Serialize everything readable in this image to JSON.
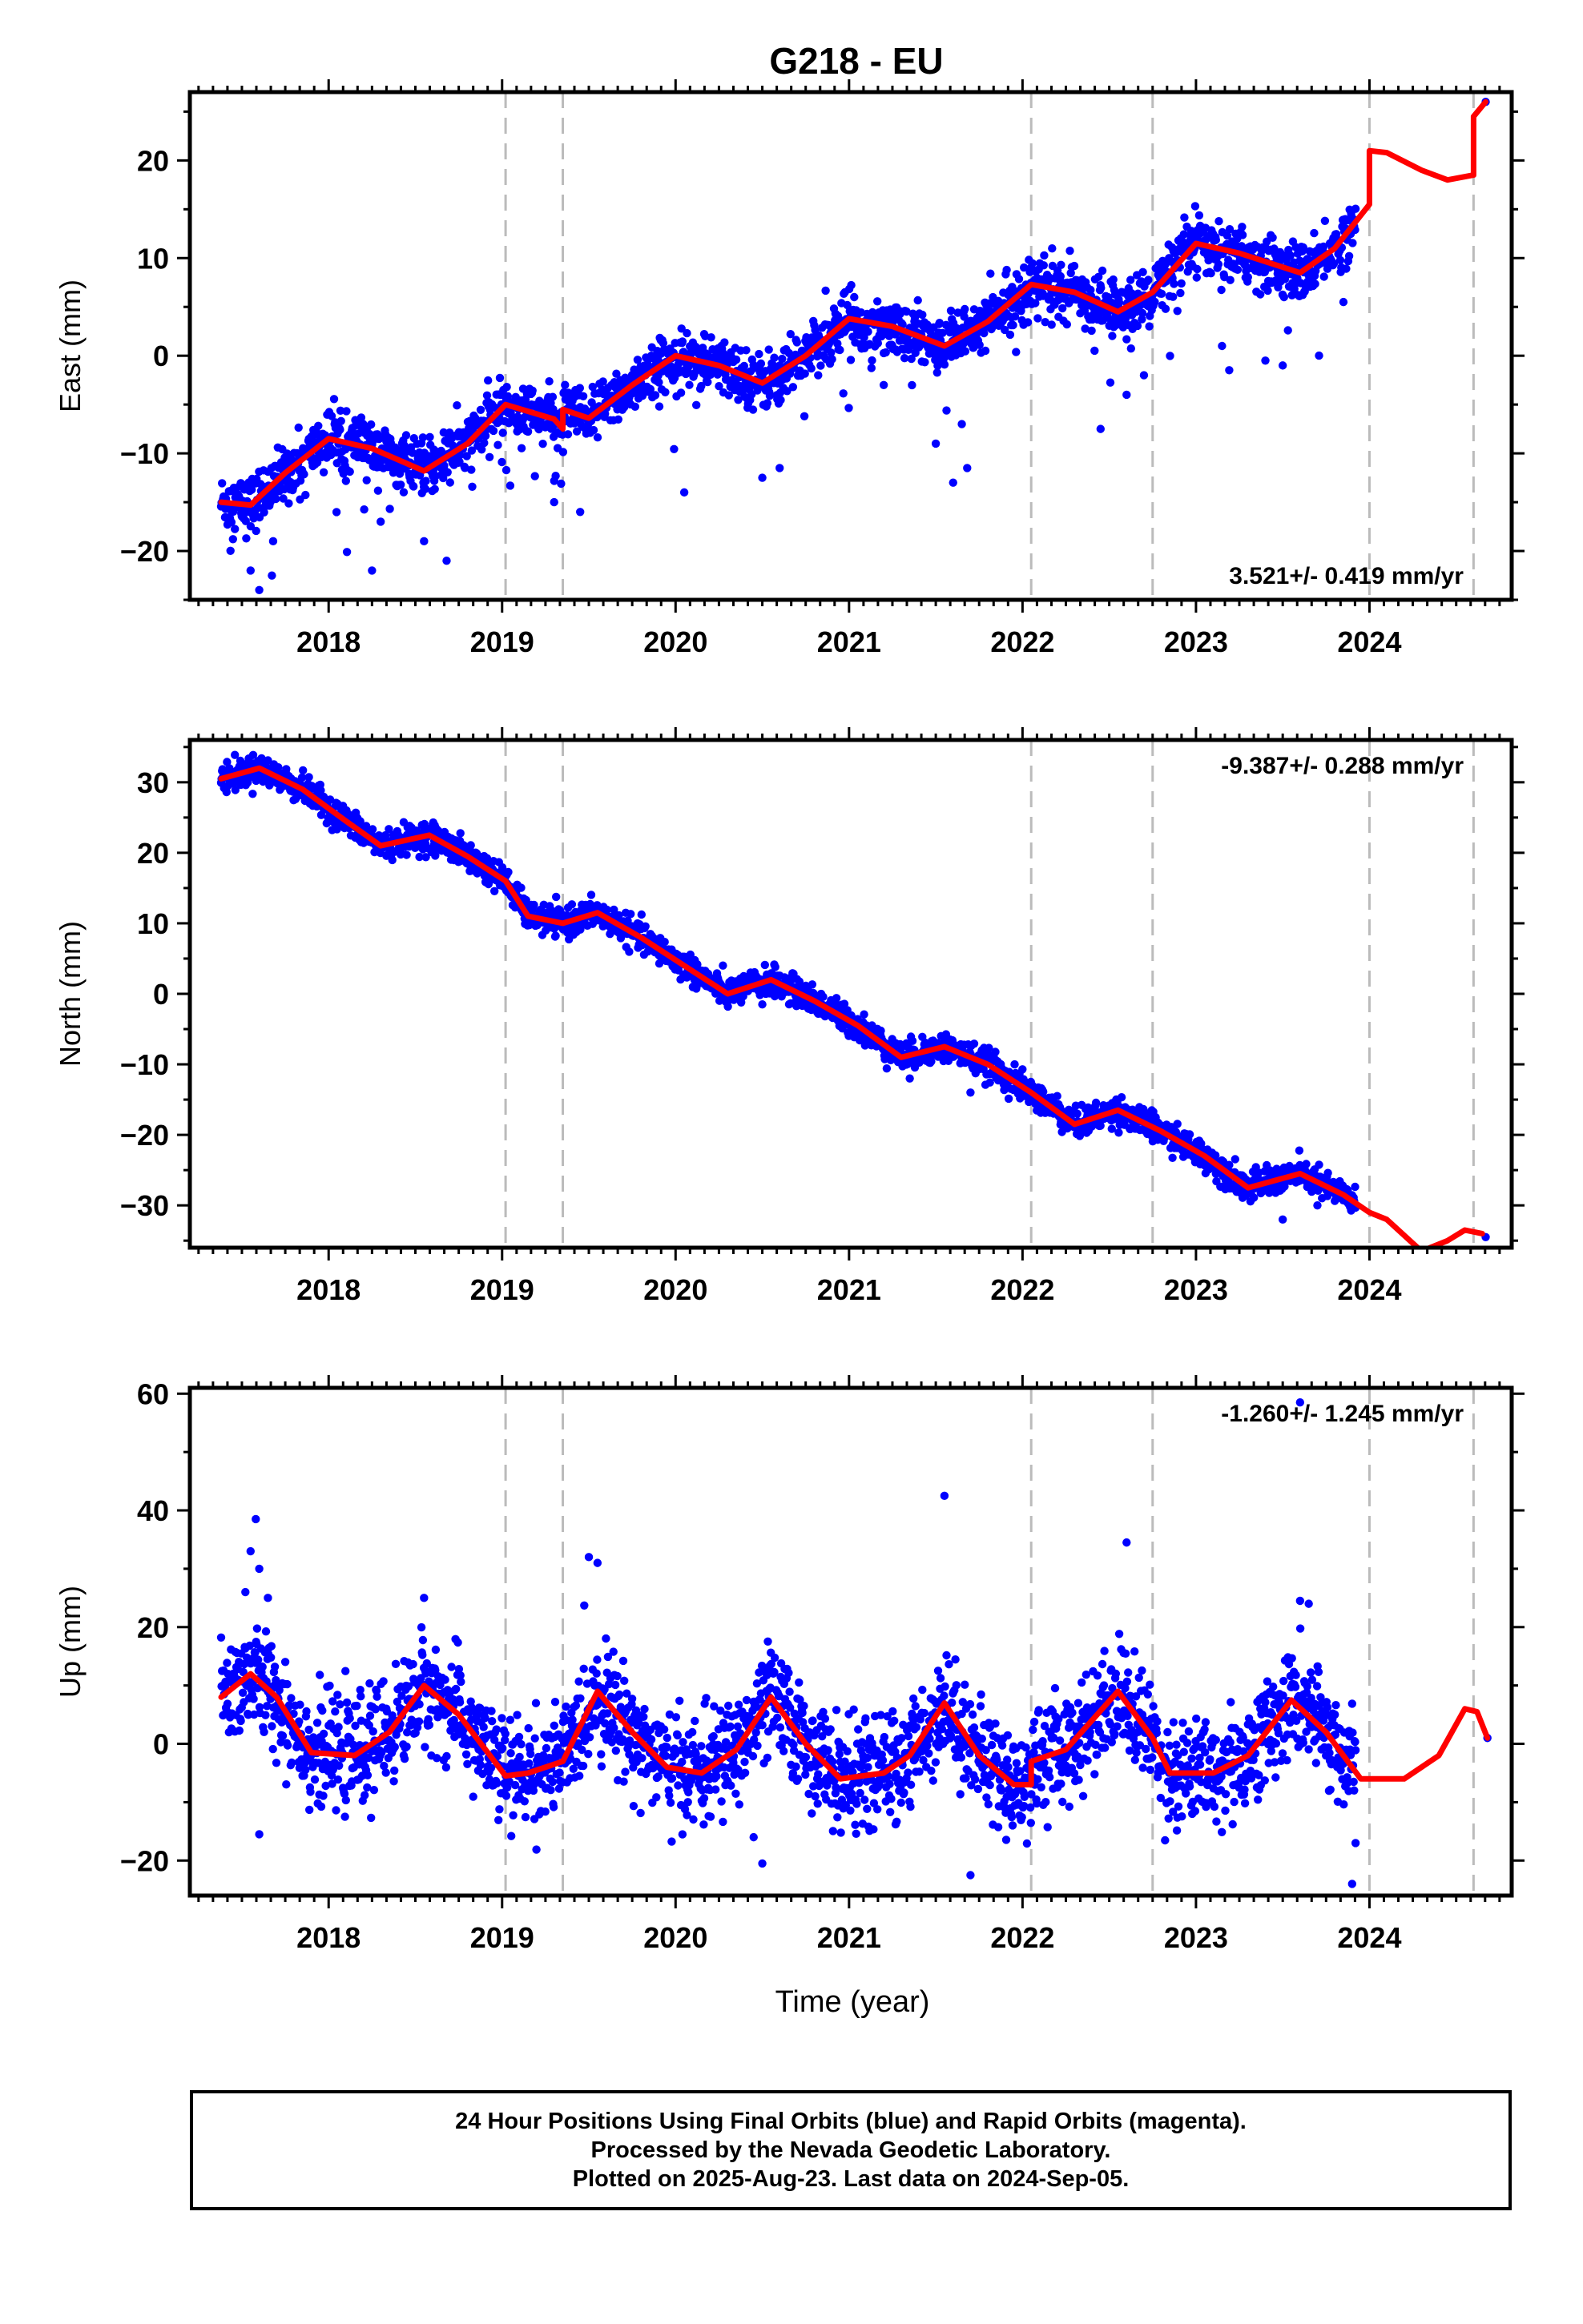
{
  "title": "G218 - EU",
  "xlabel": "Time (year)",
  "caption": [
    "24 Hour Positions Using Final Orbits (blue) and Rapid Orbits (magenta).",
    "Processed by the Nevada Geodetic Laboratory.",
    "Plotted on 2025-Aug-23. Last data on 2024-Sep-05."
  ],
  "colors": {
    "points": "#0000ff",
    "model": "#ff0000",
    "breaks": "#bbbbbb",
    "frame": "#000000"
  },
  "chart_data": [
    {
      "type": "scatter",
      "ylabel": "East (mm)",
      "rate_label": "3.521+/- 0.419 mm/yr",
      "rate_position": "bottom-right",
      "xlim": [
        2017.2,
        2024.82
      ],
      "ylim": [
        -25,
        27
      ],
      "xticks": [
        2018,
        2019,
        2020,
        2021,
        2022,
        2023,
        2024
      ],
      "yticks": [
        -20,
        -10,
        0,
        10,
        20
      ],
      "breaks": [
        2019.02,
        2019.35,
        2022.05,
        2022.75,
        2024.0,
        2024.6
      ],
      "trend": [
        [
          2017.38,
          -15
        ],
        [
          2017.55,
          -15.3
        ],
        [
          2017.75,
          -12
        ],
        [
          2018.0,
          -8.5
        ],
        [
          2018.25,
          -9.5
        ],
        [
          2018.55,
          -11.8
        ],
        [
          2018.8,
          -9
        ],
        [
          2019.02,
          -5
        ],
        [
          2019.3,
          -6.5
        ],
        [
          2019.35,
          -7.5
        ],
        [
          2019.35,
          -5.5
        ],
        [
          2019.5,
          -6.4
        ],
        [
          2019.75,
          -3
        ],
        [
          2020.0,
          0
        ],
        [
          2020.25,
          -1
        ],
        [
          2020.5,
          -2.8
        ],
        [
          2020.75,
          0
        ],
        [
          2021.0,
          3.8
        ],
        [
          2021.25,
          3
        ],
        [
          2021.55,
          1
        ],
        [
          2021.8,
          3.5
        ],
        [
          2022.05,
          7.3
        ],
        [
          2022.3,
          6.5
        ],
        [
          2022.55,
          4.5
        ],
        [
          2022.75,
          6.5
        ],
        [
          2023.0,
          11.5
        ],
        [
          2023.25,
          10.5
        ],
        [
          2023.6,
          8.5
        ],
        [
          2023.8,
          11
        ],
        [
          2024.0,
          15.5
        ],
        [
          2024.0,
          21
        ],
        [
          2024.1,
          20.8
        ],
        [
          2024.3,
          19
        ],
        [
          2024.45,
          18
        ],
        [
          2024.6,
          18.5
        ],
        [
          2024.6,
          24.5
        ],
        [
          2024.67,
          26
        ]
      ],
      "residual_sigma": 1.4,
      "scatter_range": [
        2017.38,
        2023.92
      ],
      "last_point": [
        2024.67,
        26
      ],
      "outliers": [
        [
          2017.55,
          -22
        ],
        [
          2017.6,
          -24
        ],
        [
          2017.68,
          -19
        ],
        [
          2018.25,
          -22
        ],
        [
          2018.3,
          -17
        ],
        [
          2018.55,
          -19
        ],
        [
          2018.68,
          -21
        ],
        [
          2019.3,
          -15
        ],
        [
          2019.45,
          -16
        ],
        [
          2020.05,
          -14
        ],
        [
          2020.5,
          -12.5
        ],
        [
          2020.6,
          -11.5
        ],
        [
          2021.2,
          -3
        ],
        [
          2021.5,
          -9
        ],
        [
          2021.6,
          -13
        ],
        [
          2021.65,
          -7
        ],
        [
          2022.45,
          -7.5
        ],
        [
          2022.6,
          -4
        ],
        [
          2022.7,
          -2
        ],
        [
          2023.15,
          1
        ],
        [
          2023.4,
          -0.5
        ],
        [
          2023.5,
          -1
        ],
        [
          2023.85,
          5.5
        ]
      ]
    },
    {
      "type": "scatter",
      "ylabel": "North (mm)",
      "rate_label": "-9.387+/- 0.288 mm/yr",
      "rate_position": "top-right",
      "xlim": [
        2017.2,
        2024.82
      ],
      "ylim": [
        -36,
        36
      ],
      "xticks": [
        2018,
        2019,
        2020,
        2021,
        2022,
        2023,
        2024
      ],
      "yticks": [
        -30,
        -20,
        -10,
        0,
        10,
        20,
        30
      ],
      "breaks": [
        2019.02,
        2019.35,
        2022.05,
        2022.75,
        2024.0,
        2024.6
      ],
      "trend": [
        [
          2017.38,
          30.5
        ],
        [
          2017.6,
          32
        ],
        [
          2017.85,
          29
        ],
        [
          2018.1,
          24.5
        ],
        [
          2018.3,
          21
        ],
        [
          2018.58,
          22.5
        ],
        [
          2018.8,
          19.5
        ],
        [
          2019.02,
          16
        ],
        [
          2019.15,
          11
        ],
        [
          2019.35,
          10
        ],
        [
          2019.55,
          11.5
        ],
        [
          2019.8,
          8
        ],
        [
          2020.05,
          4
        ],
        [
          2020.3,
          0
        ],
        [
          2020.55,
          2
        ],
        [
          2020.8,
          -1
        ],
        [
          2021.05,
          -4.5
        ],
        [
          2021.3,
          -9
        ],
        [
          2021.55,
          -7.5
        ],
        [
          2021.8,
          -10
        ],
        [
          2022.05,
          -14
        ],
        [
          2022.3,
          -18.5
        ],
        [
          2022.55,
          -16.5
        ],
        [
          2022.8,
          -19.5
        ],
        [
          2023.05,
          -23
        ],
        [
          2023.3,
          -27.5
        ],
        [
          2023.6,
          -25.5
        ],
        [
          2023.85,
          -28.5
        ],
        [
          2024.0,
          -31
        ],
        [
          2024.1,
          -32
        ],
        [
          2024.3,
          -36.5
        ],
        [
          2024.45,
          -35
        ],
        [
          2024.55,
          -33.5
        ],
        [
          2024.65,
          -34
        ]
      ],
      "residual_sigma": 1.0,
      "scatter_range": [
        2017.38,
        2023.92
      ],
      "last_point": [
        2024.67,
        -34.5
      ],
      "outliers": [
        [
          2020.1,
          1
        ],
        [
          2020.5,
          -1.5
        ],
        [
          2021.35,
          -12
        ],
        [
          2021.7,
          -14
        ],
        [
          2022.2,
          -14.5
        ],
        [
          2023.5,
          -32
        ],
        [
          2023.7,
          -30
        ]
      ]
    },
    {
      "type": "scatter",
      "ylabel": "Up (mm)",
      "rate_label": "-1.260+/- 1.245 mm/yr",
      "rate_position": "top-right",
      "xlim": [
        2017.2,
        2024.82
      ],
      "ylim": [
        -26,
        61
      ],
      "xticks": [
        2018,
        2019,
        2020,
        2021,
        2022,
        2023,
        2024
      ],
      "yticks": [
        -20,
        0,
        20,
        40,
        60
      ],
      "breaks": [
        2019.02,
        2019.35,
        2022.05,
        2022.75,
        2024.0,
        2024.6
      ],
      "trend": [
        [
          2017.38,
          8
        ],
        [
          2017.55,
          12
        ],
        [
          2017.7,
          8
        ],
        [
          2017.9,
          -1.5
        ],
        [
          2018.15,
          -2
        ],
        [
          2018.35,
          2
        ],
        [
          2018.55,
          10
        ],
        [
          2018.75,
          5
        ],
        [
          2019.02,
          -5.5
        ],
        [
          2019.15,
          -5
        ],
        [
          2019.35,
          -3
        ],
        [
          2019.55,
          9
        ],
        [
          2019.75,
          2
        ],
        [
          2019.95,
          -4
        ],
        [
          2020.15,
          -5
        ],
        [
          2020.35,
          -1
        ],
        [
          2020.55,
          8
        ],
        [
          2020.75,
          0
        ],
        [
          2020.95,
          -6
        ],
        [
          2021.2,
          -5
        ],
        [
          2021.35,
          -2
        ],
        [
          2021.55,
          7
        ],
        [
          2021.75,
          -2
        ],
        [
          2021.95,
          -7
        ],
        [
          2022.05,
          -7
        ],
        [
          2022.05,
          -3
        ],
        [
          2022.25,
          -1
        ],
        [
          2022.55,
          9
        ],
        [
          2022.75,
          1
        ],
        [
          2022.85,
          -5
        ],
        [
          2023.1,
          -5
        ],
        [
          2023.3,
          -2
        ],
        [
          2023.55,
          7.5
        ],
        [
          2023.75,
          2
        ],
        [
          2023.95,
          -6
        ],
        [
          2024.2,
          -6
        ],
        [
          2024.4,
          -2
        ],
        [
          2024.55,
          6
        ],
        [
          2024.62,
          5.5
        ],
        [
          2024.68,
          1
        ]
      ],
      "residual_sigma": 4.5,
      "scatter_range": [
        2017.38,
        2023.92
      ],
      "last_point": [
        2024.68,
        1
      ],
      "outliers": [
        [
          2017.52,
          26
        ],
        [
          2017.55,
          33
        ],
        [
          2017.58,
          38.5
        ],
        [
          2017.6,
          30
        ],
        [
          2017.65,
          25
        ],
        [
          2017.6,
          -15.5
        ],
        [
          2018.55,
          25
        ],
        [
          2019.5,
          32
        ],
        [
          2019.55,
          31
        ],
        [
          2020.45,
          -16
        ],
        [
          2020.5,
          -20.5
        ],
        [
          2021.55,
          42.5
        ],
        [
          2021.7,
          -22.5
        ],
        [
          2022.6,
          34.5
        ],
        [
          2023.6,
          24.5
        ],
        [
          2023.65,
          24
        ],
        [
          2023.6,
          58.5
        ],
        [
          2023.9,
          -24
        ],
        [
          2023.92,
          -17
        ]
      ]
    }
  ]
}
